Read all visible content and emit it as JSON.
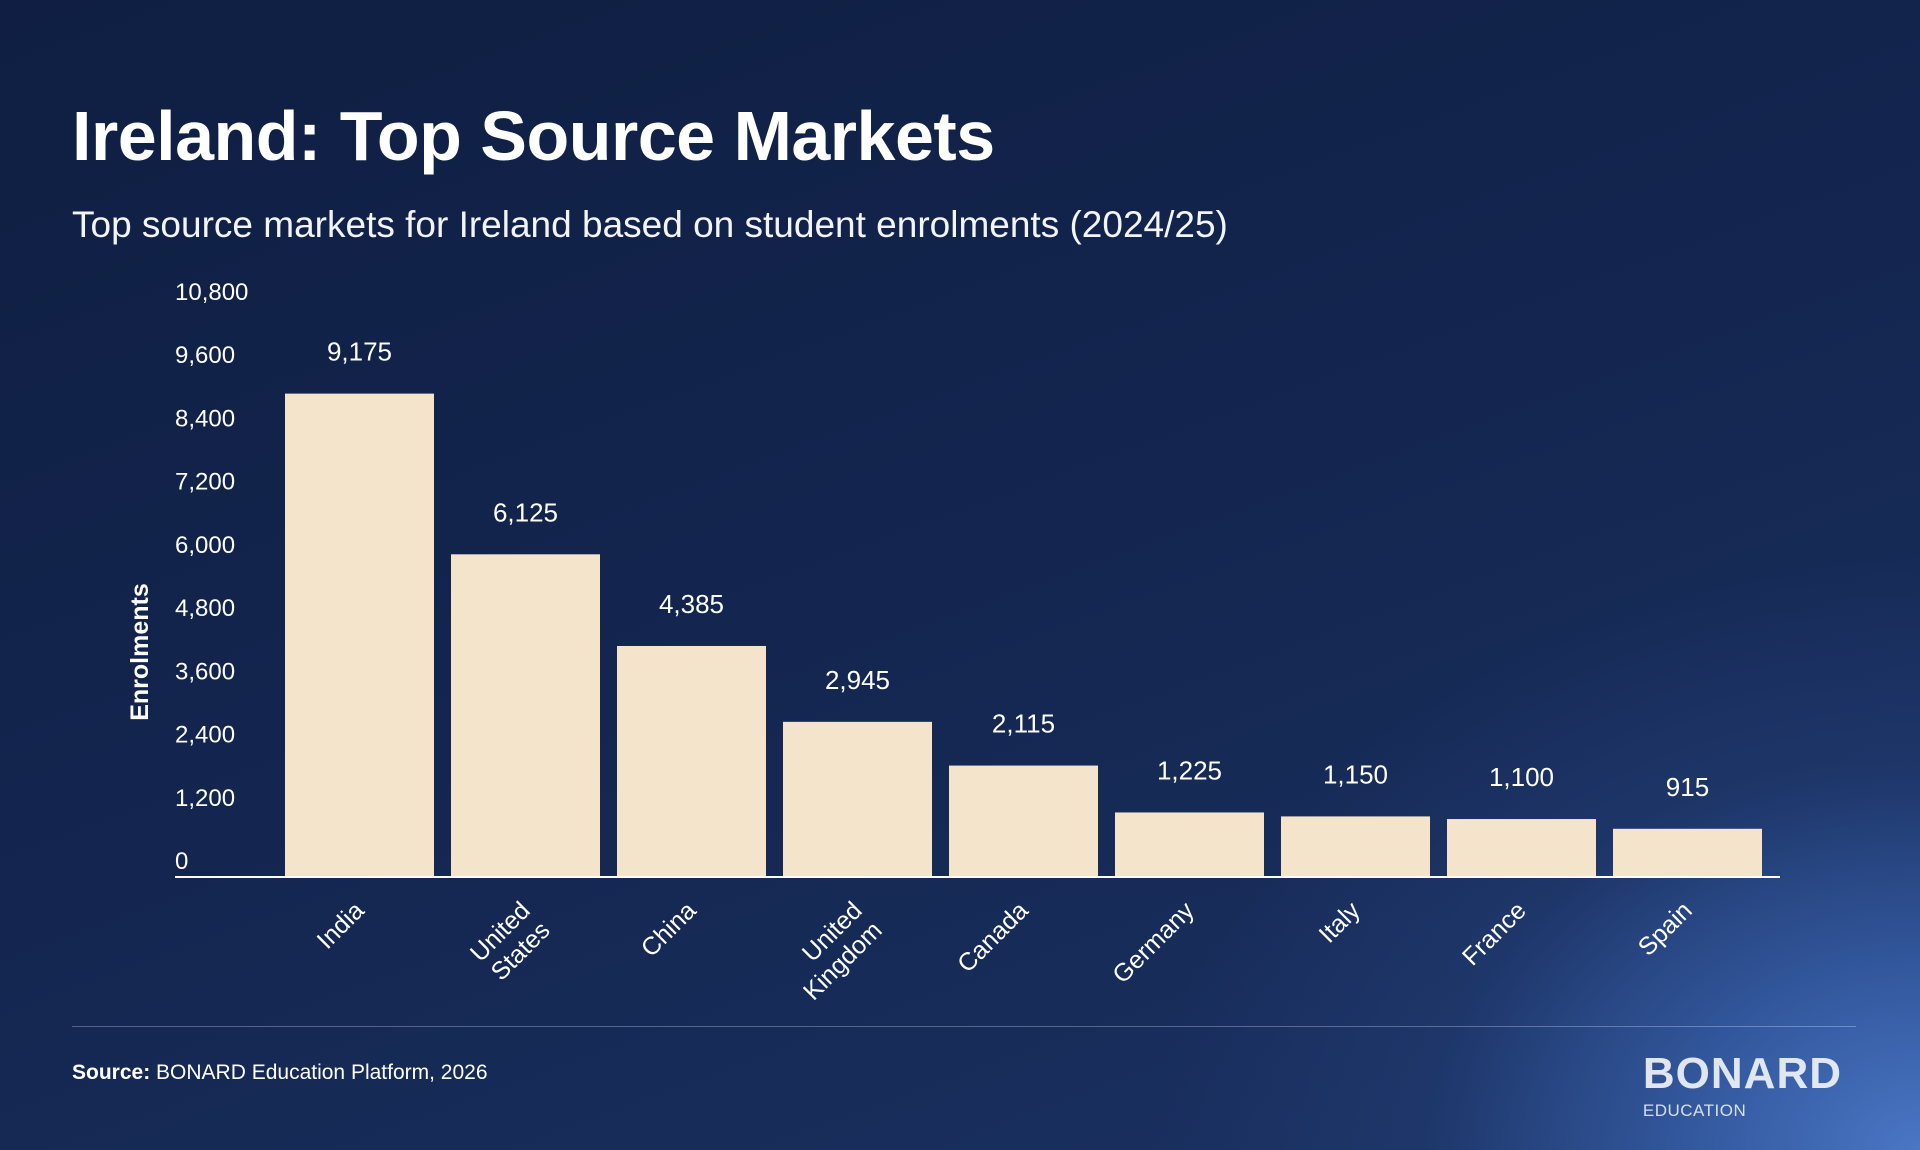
{
  "header": {
    "title": "Ireland: Top Source Markets",
    "subtitle": "Top source markets for Ireland based on student enrolments (2024/25)"
  },
  "footer": {
    "source_label": "Source:",
    "source_text": "BONARD Education Platform, 2026",
    "logo_word": "BONARD",
    "logo_sub": "EDUCATION"
  },
  "colors": {
    "bar": "#f5e4cc",
    "axis": "#ffffff",
    "background_dark": "#0f1e42",
    "background_accent": "#4a76c4"
  },
  "chart_data": {
    "type": "bar",
    "title": "Ireland: Top Source Markets",
    "subtitle": "Top source markets for Ireland based on student enrolments (2024/25)",
    "xlabel": "",
    "ylabel": "Enrolments",
    "ylim": [
      0,
      10800
    ],
    "yticks": [
      0,
      1200,
      2400,
      3600,
      4800,
      6000,
      7200,
      8400,
      9600,
      10800
    ],
    "ytick_labels": [
      "0",
      "1,200",
      "2,400",
      "3,600",
      "4,800",
      "6,000",
      "7,200",
      "8,400",
      "9,600",
      "10,800"
    ],
    "categories": [
      "India",
      "United States",
      "China",
      "United Kingdom",
      "Canada",
      "Germany",
      "Italy",
      "France",
      "Spain"
    ],
    "category_label_lines": [
      [
        "India"
      ],
      [
        "United",
        "States"
      ],
      [
        "China"
      ],
      [
        "United",
        "Kingdom"
      ],
      [
        "Canada"
      ],
      [
        "Germany"
      ],
      [
        "Italy"
      ],
      [
        "France"
      ],
      [
        "Spain"
      ]
    ],
    "values": [
      9175,
      6125,
      4385,
      2945,
      2115,
      1225,
      1150,
      1100,
      915
    ],
    "value_labels": [
      "9,175",
      "6,125",
      "4,385",
      "2,945",
      "2,115",
      "1,225",
      "1,150",
      "1,100",
      "915"
    ],
    "grid": false,
    "legend": "none"
  }
}
